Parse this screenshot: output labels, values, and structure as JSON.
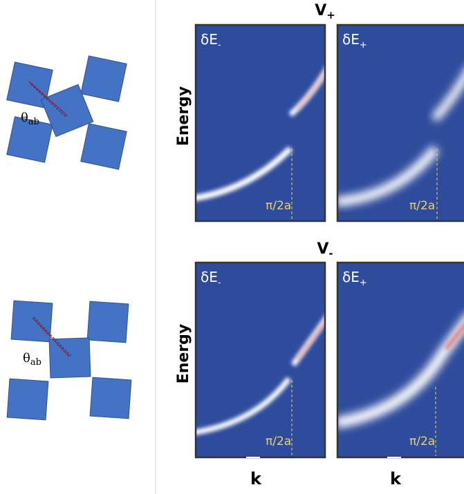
{
  "left": {
    "angle_label": {
      "main": "θ",
      "sub": "ab"
    }
  },
  "top": {
    "title": {
      "main": "V",
      "sub": "+"
    },
    "y_label": "Energy",
    "panels": [
      {
        "label": {
          "main": "δE",
          "sub": "-"
        },
        "marker": "π/2a"
      },
      {
        "label": {
          "main": "δE",
          "sub": "+"
        },
        "marker": "π/2a"
      }
    ]
  },
  "bottom": {
    "title": {
      "main": "V",
      "sub": "-"
    },
    "y_label": "Energy",
    "panels": [
      {
        "label": {
          "main": "δE",
          "sub": "-"
        },
        "marker": "π/2a"
      },
      {
        "label": {
          "main": "δE",
          "sub": "+"
        },
        "marker": "π/2a"
      }
    ],
    "x_labels": [
      "k",
      "k"
    ]
  }
}
